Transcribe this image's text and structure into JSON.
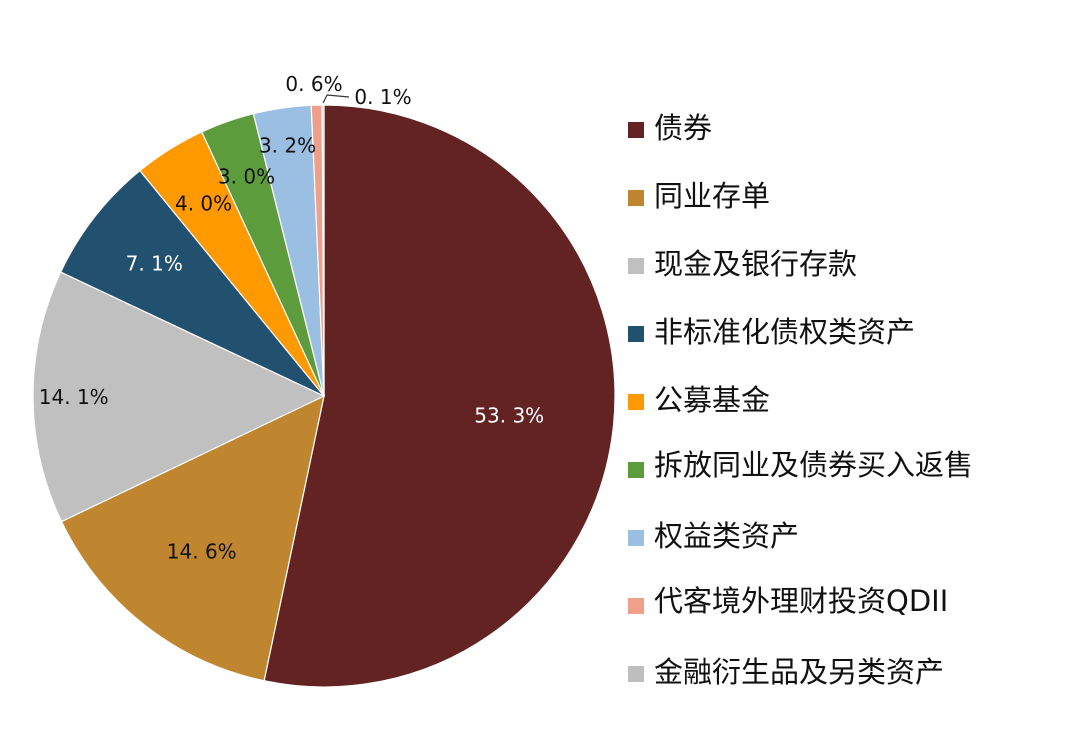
{
  "chart_data": {
    "type": "pie",
    "categories": [
      "债券",
      "同业存单",
      "现金及银行存款",
      "非标准化债权类资产",
      "公募基金",
      "拆放同业及债券买入返售",
      "权益类资产",
      "代客境外理财投资QDII",
      "金融衍生品及另类资产"
    ],
    "values": [
      53.3,
      14.6,
      14.1,
      7.1,
      4.0,
      3.0,
      3.2,
      0.6,
      0.1
    ],
    "labels": [
      "53. 3%",
      "14. 6%",
      "14. 1%",
      "7. 1%",
      "4. 0%",
      "3. 0%",
      "3. 2%",
      "0. 6%",
      "0. 1%"
    ],
    "colors": [
      "#632323",
      "#BF852F",
      "#C0C0C0",
      "#22506F",
      "#FF9900",
      "#5C9C3C",
      "#9ABFE3",
      "#F0A08A",
      "#BEBEBE"
    ],
    "label_colors": [
      "#ffffff",
      "#111111",
      "#111111",
      "#ffffff",
      "#111111",
      "#111111",
      "#111111",
      "#111111",
      "#111111"
    ],
    "legend_position": "right",
    "title": ""
  }
}
